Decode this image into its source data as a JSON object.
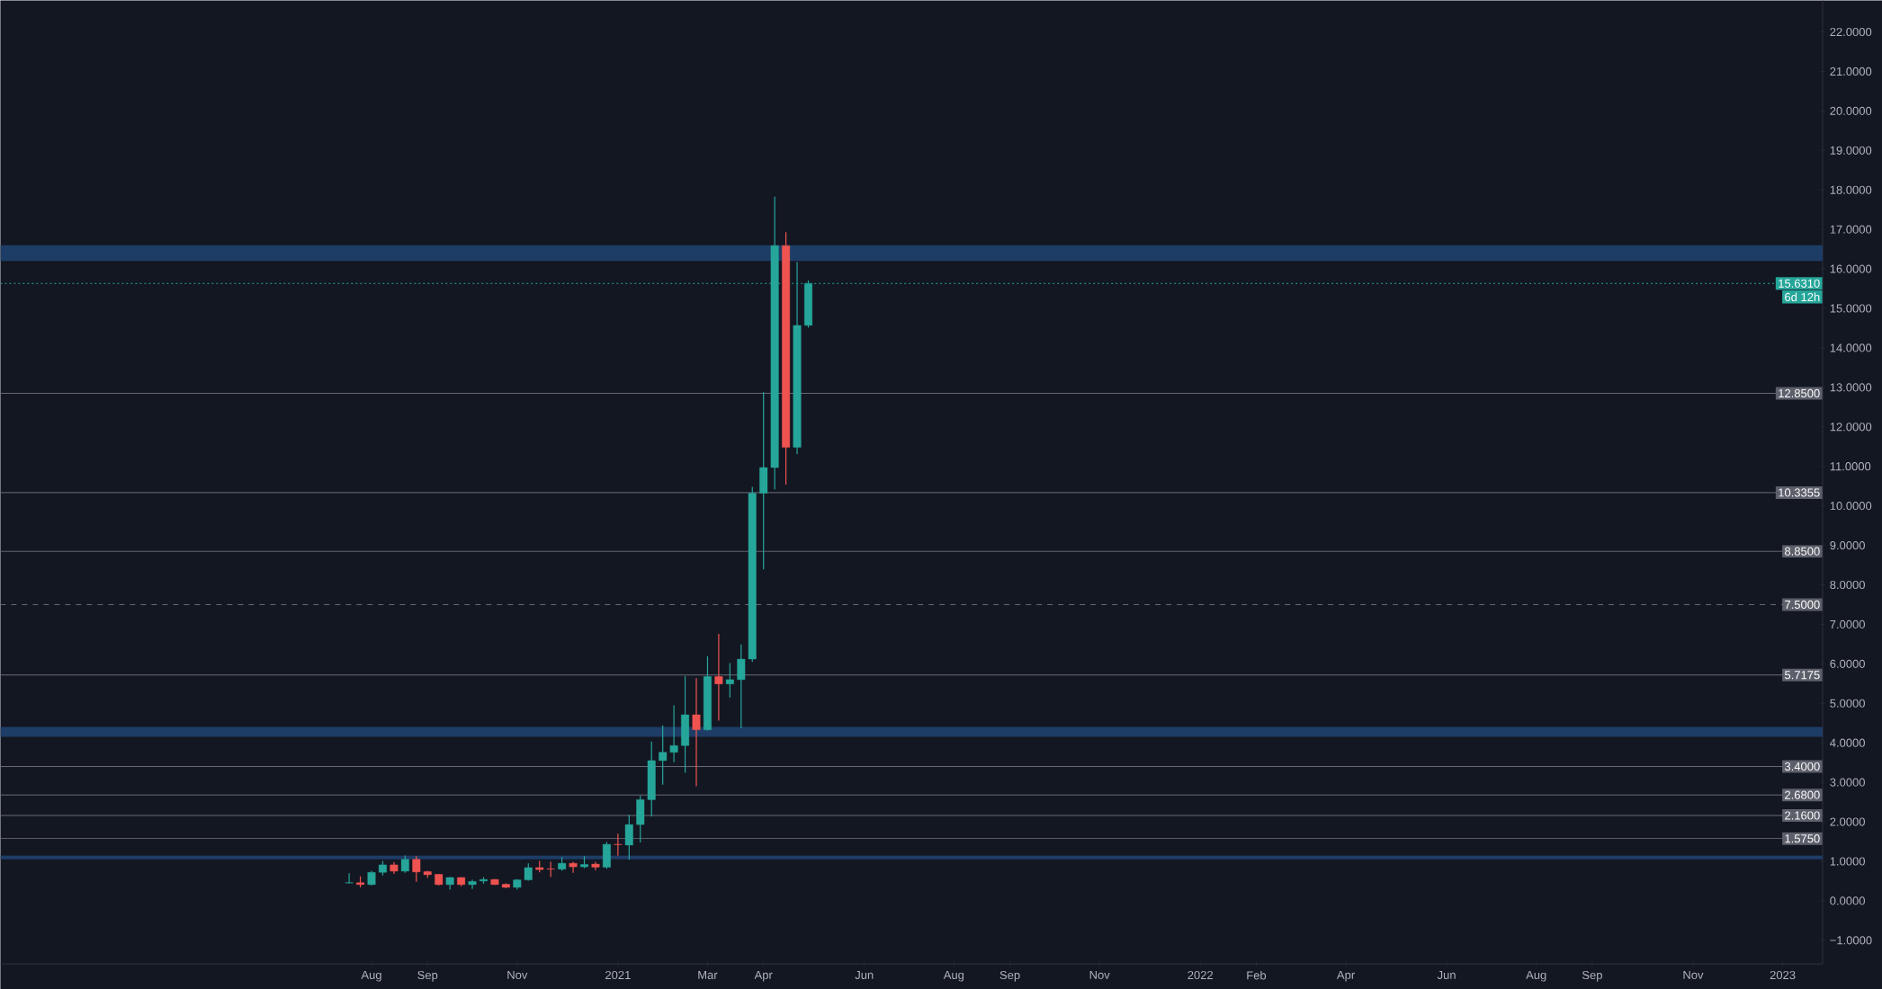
{
  "chart_data": {
    "type": "candlestick",
    "x": [
      "2020-07-20",
      "2020-07-27",
      "2020-08-03",
      "2020-08-10",
      "2020-08-17",
      "2020-08-24",
      "2020-08-31",
      "2020-09-07",
      "2020-09-14",
      "2020-09-21",
      "2020-09-28",
      "2020-10-05",
      "2020-10-12",
      "2020-10-19",
      "2020-10-26",
      "2020-11-02",
      "2020-11-09",
      "2020-11-16",
      "2020-11-23",
      "2020-11-30",
      "2020-12-07",
      "2020-12-14",
      "2020-12-21",
      "2020-12-28",
      "2021-01-04",
      "2021-01-11",
      "2021-01-18",
      "2021-01-25",
      "2021-02-01",
      "2021-02-08",
      "2021-02-15",
      "2021-02-22",
      "2021-03-01",
      "2021-03-08",
      "2021-03-15",
      "2021-03-22",
      "2021-03-29",
      "2021-04-05",
      "2021-04-12",
      "2021-04-19",
      "2021-04-26",
      "2021-05-03"
    ],
    "ohlc": [
      [
        0.45,
        0.7,
        0.44,
        0.46
      ],
      [
        0.46,
        0.62,
        0.34,
        0.41
      ],
      [
        0.41,
        0.76,
        0.39,
        0.72
      ],
      [
        0.72,
        1.01,
        0.64,
        0.91
      ],
      [
        0.91,
        0.98,
        0.68,
        0.75
      ],
      [
        0.75,
        1.15,
        0.71,
        1.05
      ],
      [
        1.05,
        1.13,
        0.48,
        0.73
      ],
      [
        0.74,
        0.76,
        0.58,
        0.66
      ],
      [
        0.67,
        0.68,
        0.39,
        0.41
      ],
      [
        0.41,
        0.6,
        0.28,
        0.59
      ],
      [
        0.59,
        0.6,
        0.37,
        0.41
      ],
      [
        0.41,
        0.53,
        0.3,
        0.49
      ],
      [
        0.5,
        0.6,
        0.43,
        0.54
      ],
      [
        0.54,
        0.55,
        0.4,
        0.41
      ],
      [
        0.42,
        0.44,
        0.32,
        0.34
      ],
      [
        0.34,
        0.55,
        0.29,
        0.53
      ],
      [
        0.53,
        0.95,
        0.51,
        0.84
      ],
      [
        0.84,
        1.01,
        0.72,
        0.79
      ],
      [
        0.81,
        0.99,
        0.6,
        0.8
      ],
      [
        0.8,
        1.11,
        0.76,
        0.95
      ],
      [
        0.95,
        0.99,
        0.71,
        0.86
      ],
      [
        0.86,
        1.13,
        0.82,
        0.92
      ],
      [
        0.93,
        0.99,
        0.77,
        0.85
      ],
      [
        0.85,
        1.49,
        0.81,
        1.43
      ],
      [
        1.43,
        1.7,
        1.14,
        1.42
      ],
      [
        1.41,
        2.18,
        1.04,
        1.93
      ],
      [
        1.93,
        2.66,
        1.48,
        2.56
      ],
      [
        2.56,
        4.03,
        2.13,
        3.55
      ],
      [
        3.55,
        4.44,
        2.94,
        3.76
      ],
      [
        3.76,
        4.95,
        3.51,
        3.93
      ],
      [
        3.93,
        5.69,
        3.24,
        4.71
      ],
      [
        4.71,
        5.64,
        2.9,
        4.33
      ],
      [
        4.33,
        6.19,
        4.31,
        5.68
      ],
      [
        5.68,
        6.76,
        4.56,
        5.49
      ],
      [
        5.49,
        6.02,
        5.15,
        5.6
      ],
      [
        5.6,
        6.49,
        4.37,
        6.12
      ],
      [
        6.12,
        10.48,
        6.05,
        10.32
      ],
      [
        10.32,
        12.88,
        8.39,
        10.97
      ],
      [
        10.97,
        17.83,
        10.42,
        16.59
      ],
      [
        16.59,
        16.93,
        10.54,
        11.48
      ],
      [
        11.48,
        16.18,
        11.31,
        14.57
      ],
      [
        14.57,
        15.71,
        14.51,
        15.63
      ]
    ],
    "colors": [
      "#26a69a",
      "#ef5350",
      "#26a69a",
      "#26a69a",
      "#ef5350",
      "#26a69a",
      "#ef5350",
      "#ef5350",
      "#ef5350",
      "#26a69a",
      "#ef5350",
      "#26a69a",
      "#26a69a",
      "#ef5350",
      "#ef5350",
      "#26a69a",
      "#26a69a",
      "#ef5350",
      "#ef5350",
      "#26a69a",
      "#ef5350",
      "#26a69a",
      "#ef5350",
      "#26a69a",
      "#ef5350",
      "#26a69a",
      "#26a69a",
      "#26a69a",
      "#26a69a",
      "#26a69a",
      "#26a69a",
      "#ef5350",
      "#26a69a",
      "#ef5350",
      "#26a69a",
      "#26a69a",
      "#26a69a",
      "#26a69a",
      "#26a69a",
      "#ef5350",
      "#26a69a",
      "#26a69a"
    ],
    "xlim": [
      "2019-12-15",
      "2023-01-27"
    ],
    "ylim": [
      -1.6,
      22.8
    ],
    "xticks": [
      {
        "value": "2020-08-03",
        "label": "Aug"
      },
      {
        "value": "2020-09-07",
        "label": "Sep"
      },
      {
        "value": "2020-11-02",
        "label": "Nov"
      },
      {
        "value": "2021-01-04",
        "label": "2021"
      },
      {
        "value": "2021-03-01",
        "label": "Mar"
      },
      {
        "value": "2021-04-05",
        "label": "Apr"
      },
      {
        "value": "2021-06-07",
        "label": "Jun"
      },
      {
        "value": "2021-08-02",
        "label": "Aug"
      },
      {
        "value": "2021-09-06",
        "label": "Sep"
      },
      {
        "value": "2021-11-01",
        "label": "Nov"
      },
      {
        "value": "2022-01-03",
        "label": "2022"
      },
      {
        "value": "2022-02-07",
        "label": "Feb"
      },
      {
        "value": "2022-04-04",
        "label": "Apr"
      },
      {
        "value": "2022-06-06",
        "label": "Jun"
      },
      {
        "value": "2022-08-01",
        "label": "Aug"
      },
      {
        "value": "2022-09-05",
        "label": "Sep"
      },
      {
        "value": "2022-11-07",
        "label": "Nov"
      },
      {
        "value": "2023-01-02",
        "label": "2023"
      }
    ],
    "yticks": [
      {
        "value": -1,
        "label": "−1.0000"
      },
      {
        "value": 0,
        "label": "0.0000"
      },
      {
        "value": 1,
        "label": "1.0000"
      },
      {
        "value": 2,
        "label": "2.0000"
      },
      {
        "value": 3,
        "label": "3.0000"
      },
      {
        "value": 4,
        "label": "4.0000"
      },
      {
        "value": 5,
        "label": "5.0000"
      },
      {
        "value": 6,
        "label": "6.0000"
      },
      {
        "value": 7,
        "label": "7.0000"
      },
      {
        "value": 8,
        "label": "8.0000"
      },
      {
        "value": 9,
        "label": "9.0000"
      },
      {
        "value": 10,
        "label": "10.0000"
      },
      {
        "value": 11,
        "label": "11.0000"
      },
      {
        "value": 12,
        "label": "12.0000"
      },
      {
        "value": 13,
        "label": "13.0000"
      },
      {
        "value": 14,
        "label": "14.0000"
      },
      {
        "value": 15,
        "label": "15.0000"
      },
      {
        "value": 16,
        "label": "16.0000"
      },
      {
        "value": 17,
        "label": "17.0000"
      },
      {
        "value": 18,
        "label": "18.0000"
      },
      {
        "value": 19,
        "label": "19.0000"
      },
      {
        "value": 20,
        "label": "20.0000"
      },
      {
        "value": 21,
        "label": "21.0000"
      },
      {
        "value": 22,
        "label": "22.0000"
      }
    ],
    "ref_lines": [
      {
        "axis": "y",
        "value": 15.631,
        "label": "15.6310",
        "color": "#26a69a",
        "line_style": "dotted"
      },
      {
        "axis": "y",
        "value": 12.85,
        "label": "12.8500",
        "color": "#6a6d78",
        "line_style": "solid"
      },
      {
        "axis": "y",
        "value": 10.3355,
        "label": "10.3355",
        "color": "#6a6d78",
        "line_style": "solid"
      },
      {
        "axis": "y",
        "value": 8.85,
        "label": "8.8500",
        "color": "#6a6d78",
        "line_style": "solid"
      },
      {
        "axis": "y",
        "value": 7.5,
        "label": "7.5000",
        "color": "#6a6d78",
        "line_style": "dashed"
      },
      {
        "axis": "y",
        "value": 5.7175,
        "label": "5.7175",
        "color": "#6a6d78",
        "line_style": "solid"
      },
      {
        "axis": "y",
        "value": 3.4,
        "label": "3.4000",
        "color": "#6a6d78",
        "line_style": "solid"
      },
      {
        "axis": "y",
        "value": 2.68,
        "label": "2.6800",
        "color": "#6a6d78",
        "line_style": "solid"
      },
      {
        "axis": "y",
        "value": 2.16,
        "label": "2.1600",
        "color": "#6a6d78",
        "line_style": "solid"
      },
      {
        "axis": "y",
        "value": 1.575,
        "label": "1.5750",
        "color": "#6a6d78",
        "line_style": "solid"
      }
    ],
    "bands": [
      {
        "axis": "y",
        "from": 16.2,
        "to": 16.6,
        "color": "#1e3d66"
      },
      {
        "axis": "y",
        "from": 4.15,
        "to": 4.4,
        "color": "#1e3d66"
      },
      {
        "axis": "y",
        "from": 1.05,
        "to": 1.15,
        "color": "#1e3d66"
      }
    ],
    "annotations": [
      "6d 12h"
    ]
  }
}
